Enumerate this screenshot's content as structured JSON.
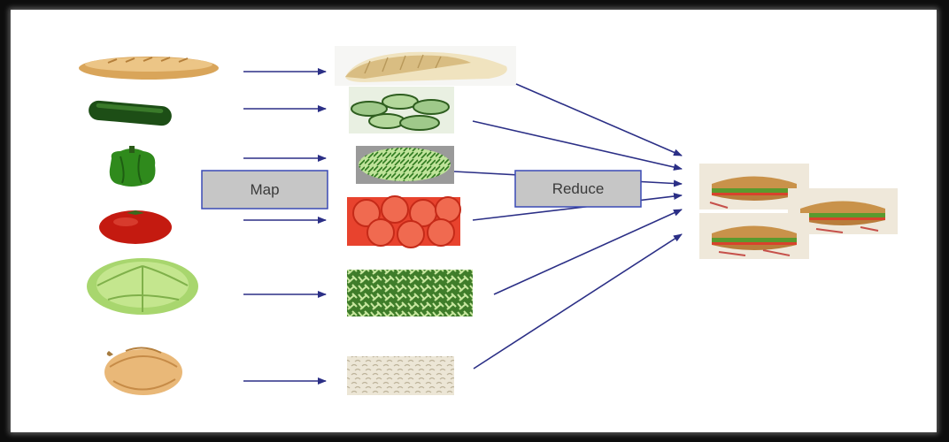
{
  "diagram": {
    "map_label": "Map",
    "reduce_label": "Reduce",
    "colors": {
      "arrow": "#2b2f86",
      "box_fill": "#c6c6c6",
      "box_stroke": "#3a4ab5"
    },
    "inputs": [
      {
        "item": "baguette",
        "icon": "baguette-icon"
      },
      {
        "item": "cucumber",
        "icon": "cucumber-icon"
      },
      {
        "item": "green-pepper",
        "icon": "green-pepper-icon"
      },
      {
        "item": "tomato",
        "icon": "tomato-icon"
      },
      {
        "item": "lettuce",
        "icon": "lettuce-icon"
      },
      {
        "item": "onion",
        "icon": "onion-icon"
      }
    ],
    "mapped": [
      {
        "item": "sliced-bread",
        "icon": "sliced-bread-icon"
      },
      {
        "item": "sliced-cucumber",
        "icon": "sliced-cucumber-icon"
      },
      {
        "item": "chopped-pepper",
        "icon": "chopped-pepper-icon"
      },
      {
        "item": "sliced-tomato",
        "icon": "sliced-tomato-icon"
      },
      {
        "item": "shredded-lettuce",
        "icon": "shredded-lettuce-icon"
      },
      {
        "item": "chopped-onion",
        "icon": "chopped-onion-icon"
      }
    ],
    "output": {
      "item": "sandwiches",
      "icon": "sandwich-icon",
      "count": 3
    }
  }
}
